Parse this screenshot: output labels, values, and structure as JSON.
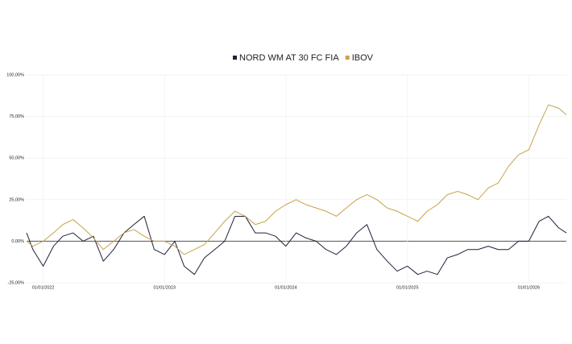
{
  "chart_data": {
    "type": "line",
    "x": [
      "2021-11-12",
      "2021-12-01",
      "2022-01-01",
      "2022-02-01",
      "2022-03-01",
      "2022-04-01",
      "2022-05-01",
      "2022-06-01",
      "2022-07-01",
      "2022-08-01",
      "2022-09-01",
      "2022-10-01",
      "2022-11-01",
      "2022-12-01",
      "2023-01-01",
      "2023-02-01",
      "2023-03-01",
      "2023-04-01",
      "2023-05-01",
      "2023-06-01",
      "2023-07-01",
      "2023-08-01",
      "2023-09-01",
      "2023-10-01",
      "2023-11-01",
      "2023-12-01",
      "2024-01-01",
      "2024-02-01",
      "2024-03-01",
      "2024-04-01",
      "2024-05-01",
      "2024-06-01",
      "2024-07-01",
      "2024-08-01",
      "2024-09-01",
      "2024-10-01",
      "2024-11-01",
      "2024-12-01",
      "2025-01-01",
      "2025-02-01",
      "2025-03-01",
      "2025-04-01",
      "2025-05-01",
      "2025-06-01",
      "2025-07-01",
      "2025-08-01",
      "2025-09-01",
      "2025-10-01",
      "2025-11-01",
      "2025-12-01",
      "2026-01-01",
      "2026-02-01",
      "2026-03-01",
      "2026-04-01",
      "2026-04-24"
    ],
    "series": [
      {
        "name": "NORD WM AT 30 FC FIA",
        "color": "#1f1f3a",
        "values": [
          5,
          -5,
          -15,
          -3,
          3,
          5,
          0,
          3,
          -12,
          -5,
          5,
          10,
          15,
          -5,
          -8,
          0,
          -15,
          -20,
          -10,
          -5,
          0,
          15,
          15,
          5,
          5,
          3,
          -3,
          5,
          2,
          0,
          -5,
          -8,
          -3,
          5,
          10,
          -5,
          -12,
          -18,
          -15,
          -20,
          -18,
          -20,
          -10,
          -8,
          -5,
          -5,
          -3,
          -5,
          -5,
          0,
          0,
          12,
          15,
          8,
          5
        ]
      },
      {
        "name": "IBOV",
        "color": "#c9a24a",
        "values": [
          0,
          -3,
          0,
          5,
          10,
          13,
          8,
          2,
          -5,
          0,
          5,
          7,
          3,
          0,
          0,
          -3,
          -8,
          -5,
          -2,
          5,
          12,
          18,
          15,
          10,
          12,
          18,
          22,
          25,
          22,
          20,
          18,
          15,
          20,
          25,
          28,
          25,
          20,
          18,
          15,
          12,
          18,
          22,
          28,
          30,
          28,
          25,
          32,
          35,
          45,
          52,
          55,
          70,
          82,
          80,
          76
        ]
      }
    ],
    "xlim": [
      "2021-11-12",
      "2026-04-24"
    ],
    "xticks": [
      {
        "value": "2022-01-01",
        "label": "01/01/2022"
      },
      {
        "value": "2023-01-01",
        "label": "01/01/2023"
      },
      {
        "value": "2024-01-01",
        "label": "01/01/2024"
      },
      {
        "value": "2025-01-01",
        "label": "01/01/2025"
      },
      {
        "value": "2026-01-01",
        "label": "01/01/2026"
      }
    ],
    "ylim": [
      -25,
      100
    ],
    "yticks": [
      {
        "value": -25,
        "label": "-25,00%"
      },
      {
        "value": 0,
        "label": "0,00%"
      },
      {
        "value": 25,
        "label": "25,00%"
      },
      {
        "value": 50,
        "label": "50,00%"
      },
      {
        "value": 75,
        "label": "75,00%"
      },
      {
        "value": 100,
        "label": "100,00%"
      }
    ],
    "grid": true,
    "legend": "top"
  }
}
